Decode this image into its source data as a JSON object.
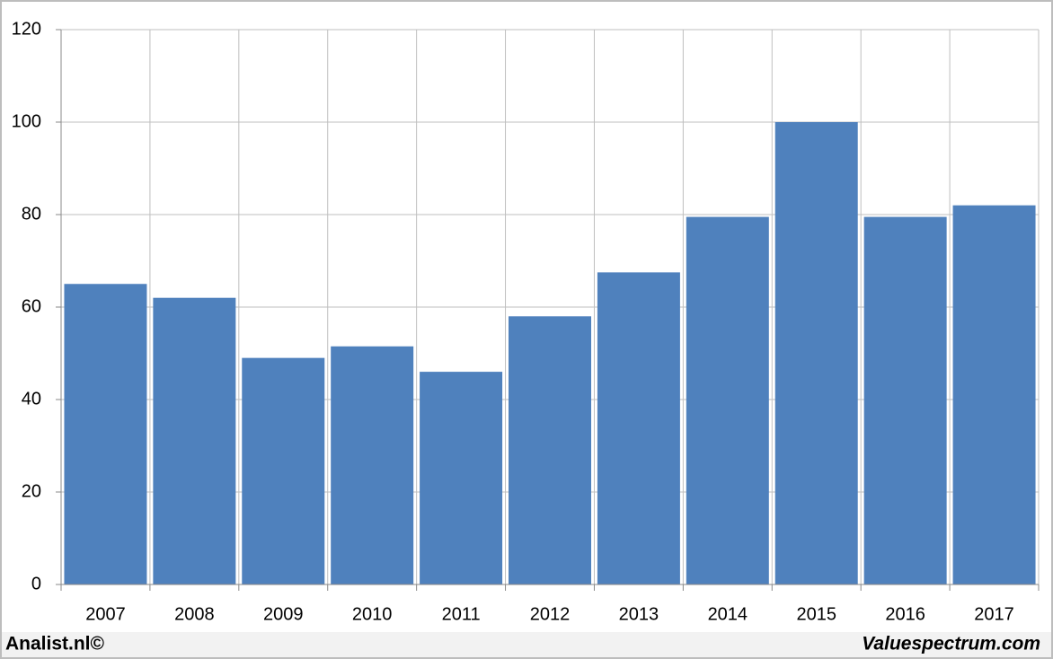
{
  "chart_data": {
    "type": "bar",
    "categories": [
      "2007",
      "2008",
      "2009",
      "2010",
      "2011",
      "2012",
      "2013",
      "2014",
      "2015",
      "2016",
      "2017"
    ],
    "values": [
      65,
      62,
      49,
      51.5,
      46,
      58,
      67.5,
      79.5,
      100,
      79.5,
      82
    ],
    "color": "#4f81bd",
    "ylim": [
      0,
      120
    ],
    "yticks": [
      0,
      20,
      40,
      60,
      80,
      100,
      120
    ],
    "grid": true
  },
  "footer": {
    "left": "Analist.nl©",
    "right": "Valuespectrum.com"
  }
}
